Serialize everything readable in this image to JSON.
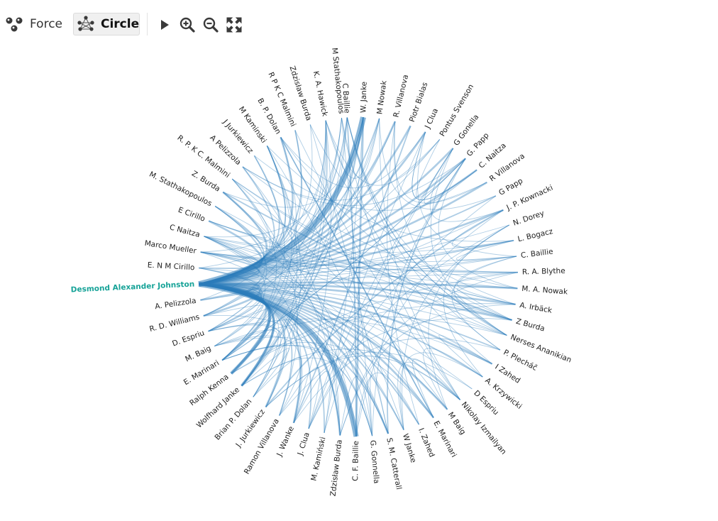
{
  "toolbar": {
    "layouts": [
      {
        "name": "force-layout-button",
        "label": "Force",
        "active": false
      },
      {
        "name": "circle-layout-button",
        "label": "Circle",
        "active": true
      }
    ],
    "controls": [
      "play-icon",
      "zoom-in-icon",
      "zoom-out-icon",
      "fullscreen-icon"
    ]
  },
  "colors": {
    "edge": "#2b7bba",
    "highlight": "#17a398",
    "label": "#1d1d1d"
  },
  "graph": {
    "layout": "circle",
    "highlighted_node": "Desmond Alexander Johnston",
    "nodes": [
      "C Baillie",
      "W. Janke",
      "M Nowak",
      "R. Villanova",
      "Piotr Bialas",
      "J Clua",
      "Pontus Svenson",
      "G Gonella",
      "G. Papp",
      "C. Naitza",
      "R Villanova",
      "G Papp",
      "J. P. Kownacki",
      "N. Dorey",
      "L. Bogacz",
      "C. Baillie",
      "R. A. Blythe",
      "M. A. Nowak",
      "A. Irbäck",
      "Z Burda",
      "Nerses Ananikian",
      "P. Plecháč",
      "I Zahed",
      "A. Krzywicki",
      "D Espriu",
      "Nikolay Izmailyan",
      "M Baig",
      "E. Marinari",
      "I. Zahed",
      "W Janke",
      "S. M. Catterall",
      "G. Gonnella",
      "C. F. Baillie",
      "Zdzisław Burda",
      "M. Kamiński",
      "J. Clua",
      "J. Wanke",
      "Ramon Villanova",
      "J. Jurkiewicz",
      "Brian P. Dolan",
      "Wolfhard Janke",
      "Ralph Kenna",
      "E. Marinari",
      "M. Baig",
      "D. Espriu",
      "R. D. Williams",
      "A. Pelizzola",
      "Desmond Alexander Johnston",
      "E. N M Cirillo",
      "Marco Mueller",
      "C Naitza",
      "E Cirillo",
      "M. Stathakopoulos",
      "Z. Burda",
      "R. P. K C. Malmini",
      "A Pelizzola",
      "J Jurkiewicz",
      "M Kaminski",
      "B. P. Dolan",
      "R P K C Malmini",
      "Zdzisław Burda",
      "K. A. Hawick",
      "M Stathakopoulos"
    ]
  }
}
